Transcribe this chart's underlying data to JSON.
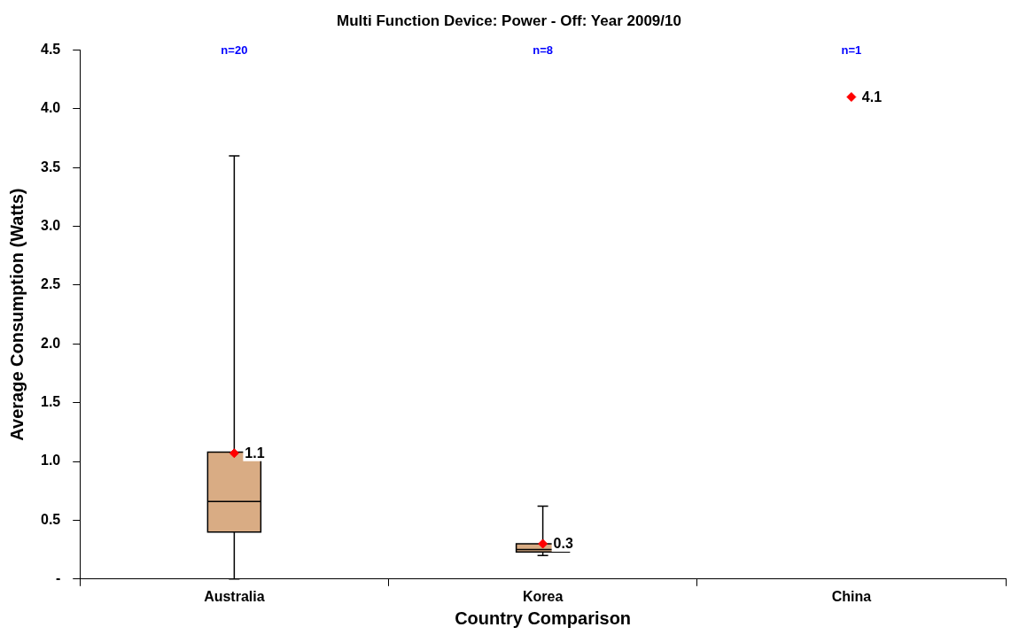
{
  "chart_data": {
    "type": "box",
    "title": "Multi Function Device: Power - Off: Year 2009/10",
    "xlabel": "Country Comparison",
    "ylabel": "Average Consumption (Watts)",
    "categories": [
      "Australia",
      "Korea",
      "China"
    ],
    "series": [
      {
        "type": "box",
        "color": "#d9ac84",
        "boxes": [
          {
            "low": 0,
            "q1": 0.4,
            "median": 0.66,
            "q3": 1.08,
            "high": 3.6
          },
          {
            "low": 0.2,
            "q1": 0.23,
            "median": 0.25,
            "q3": 0.3,
            "high": 0.62
          },
          null
        ]
      },
      {
        "type": "scatter",
        "color": "#ff0000",
        "x": [
          "Australia",
          "Korea",
          "China"
        ],
        "values": [
          1.07,
          0.3,
          4.1
        ],
        "value_labels": [
          "1.1",
          "0.3",
          "4.1"
        ]
      }
    ],
    "annotations": [
      "n=20",
      "n=8",
      "n=1"
    ],
    "ylim": [
      0,
      4.5
    ],
    "yticks": [
      {
        "value": 0,
        "label": "-"
      },
      0.5,
      {
        "value": 1,
        "label": "1.0"
      },
      1.5,
      {
        "value": 2,
        "label": "2.0"
      },
      2.5,
      {
        "value": 3,
        "label": "3.0"
      },
      3.5,
      {
        "value": 4,
        "label": "4.0"
      },
      4.5
    ],
    "grid": false,
    "legend": false,
    "marker": "diamond"
  }
}
